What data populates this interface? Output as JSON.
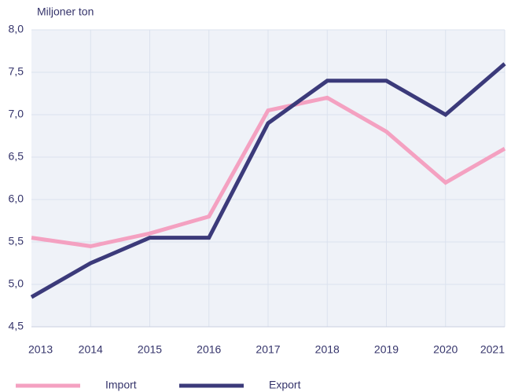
{
  "chart_data": {
    "type": "line",
    "y_label": "Miljoner ton",
    "categories": [
      "2013",
      "2014",
      "2015",
      "2016",
      "2017",
      "2018",
      "2019",
      "2020",
      "2021"
    ],
    "series": [
      {
        "name": "Import",
        "color": "#f4a1c1",
        "values": [
          5.55,
          5.45,
          5.6,
          5.8,
          7.05,
          7.2,
          6.8,
          6.2,
          6.6
        ]
      },
      {
        "name": "Export",
        "color": "#3b3a7a",
        "values": [
          4.85,
          5.25,
          5.55,
          5.55,
          6.9,
          7.4,
          7.4,
          7.0,
          7.6
        ]
      }
    ],
    "ylim": [
      4.5,
      8.0
    ],
    "yticks": [
      {
        "value": 4.5,
        "label": "4,5"
      },
      {
        "value": 5.0,
        "label": "5,0"
      },
      {
        "value": 5.5,
        "label": "5,5"
      },
      {
        "value": 6.0,
        "label": "6,0"
      },
      {
        "value": 6.5,
        "label": "6,5"
      },
      {
        "value": 7.0,
        "label": "7,0"
      },
      {
        "value": 7.5,
        "label": "7,5"
      },
      {
        "value": 8.0,
        "label": "8,0"
      }
    ],
    "grid": true
  }
}
